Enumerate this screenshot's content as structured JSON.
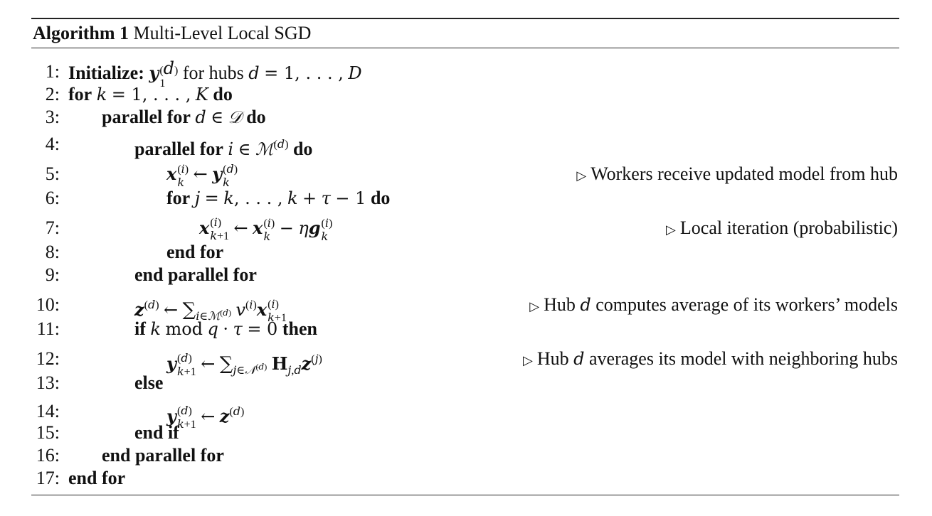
{
  "algorithm": {
    "label": "Algorithm 1",
    "title": "Multi-Level Local SGD"
  },
  "lines": [
    {
      "num": "1:",
      "text": "Initialize: y_1^(d) for hubs d = 1, . . . , D",
      "comment": ""
    },
    {
      "num": "2:",
      "text": "for k = 1, . . . , K do",
      "comment": ""
    },
    {
      "num": "3:",
      "text": "parallel for d ∈ 𝒟 do",
      "comment": ""
    },
    {
      "num": "4:",
      "text": "parallel for i ∈ ℳ^(d) do",
      "comment": ""
    },
    {
      "num": "5:",
      "text": "x_k^(i) ← y_k^(d)",
      "comment": "Workers receive updated model from hub"
    },
    {
      "num": "6:",
      "text": "for j = k, . . . , k + τ − 1 do",
      "comment": ""
    },
    {
      "num": "7:",
      "text": "x_{k+1}^(i) ← x_k^(i) − η g_k^(i)",
      "comment": "Local iteration (probabilistic)"
    },
    {
      "num": "8:",
      "text": "end for",
      "comment": ""
    },
    {
      "num": "9:",
      "text": "end parallel for",
      "comment": ""
    },
    {
      "num": "10:",
      "text": "z^(d) ← ∑_{i∈ℳ^(d)} v^(i) x_{k+1}^(i)",
      "comment": "Hub d computes average of its workers’ models"
    },
    {
      "num": "11:",
      "text": "if k mod q · τ = 0 then",
      "comment": ""
    },
    {
      "num": "12:",
      "text": "y_{k+1}^(d) ← ∑_{j∈𝒩^(d)} H_{j,d} z^(j)",
      "comment": "Hub d averages its model with neighboring hubs"
    },
    {
      "num": "13:",
      "text": "else",
      "comment": ""
    },
    {
      "num": "14:",
      "text": "y_{k+1}^(d) ← z^(d)",
      "comment": ""
    },
    {
      "num": "15:",
      "text": "end if",
      "comment": ""
    },
    {
      "num": "16:",
      "text": "end parallel for",
      "comment": ""
    },
    {
      "num": "17:",
      "text": "end for",
      "comment": ""
    }
  ],
  "kw": {
    "initialize": "Initialize:",
    "for": "for",
    "do": "do",
    "parallel_for": "parallel for",
    "end_for": "end for",
    "end_parallel_for": "end parallel for",
    "if": "if",
    "then": "then",
    "else": "else",
    "end_if": "end if",
    "mod": "mod"
  },
  "comment_symbol": "▷",
  "comments": {
    "l5": "Workers receive updated model from hub",
    "l7": "Local iteration (probabilistic)",
    "l10_a": "Hub",
    "l10_b": "computes average of its workers’ models",
    "l12_a": "Hub",
    "l12_b": "averages its model with neighboring hubs"
  },
  "text": {
    "for_hubs": "for hubs"
  }
}
